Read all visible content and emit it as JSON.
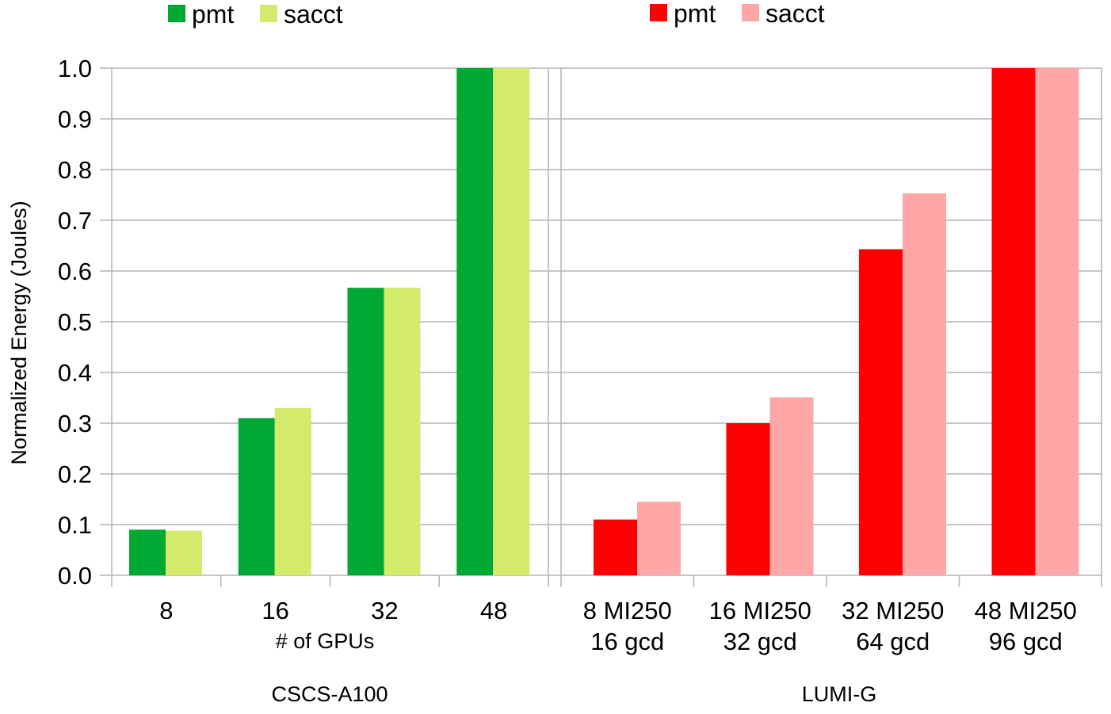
{
  "y_axis_label": "Normalized Energy (Joules)",
  "chart_data": [
    {
      "type": "bar",
      "panel_label": "CSCS-A100",
      "xlabel": "# of GPUs",
      "ylabel": "Normalized Energy (Joules)",
      "ylim": [
        0,
        1.0
      ],
      "yticks": [
        "0.0",
        "0.1",
        "0.2",
        "0.3",
        "0.4",
        "0.5",
        "0.6",
        "0.7",
        "0.8",
        "0.9",
        "1.0"
      ],
      "categories": [
        "8",
        "16",
        "32",
        "48"
      ],
      "legend_position": "top",
      "grid": true,
      "series": [
        {
          "name": "pmt",
          "color": "#00a933",
          "values": [
            0.09,
            0.31,
            0.567,
            1.0
          ]
        },
        {
          "name": "sacct",
          "color": "#d4ea6b",
          "values": [
            0.088,
            0.33,
            0.567,
            1.0
          ]
        }
      ]
    },
    {
      "type": "bar",
      "panel_label": "LUMI-G",
      "xlabel": "",
      "ylim": [
        0,
        1.0
      ],
      "categories": [
        [
          "8 MI250",
          "16 gcd"
        ],
        [
          "16 MI250",
          "32 gcd"
        ],
        [
          "32 MI250",
          "64 gcd"
        ],
        [
          "48 MI250",
          "96 gcd"
        ]
      ],
      "legend_position": "top",
      "grid": true,
      "series": [
        {
          "name": "pmt",
          "color": "#ff0000",
          "values": [
            0.11,
            0.3,
            0.643,
            1.0
          ]
        },
        {
          "name": "sacct",
          "color": "#ffa6a6",
          "values": [
            0.145,
            0.351,
            0.753,
            1.0
          ]
        }
      ]
    }
  ]
}
